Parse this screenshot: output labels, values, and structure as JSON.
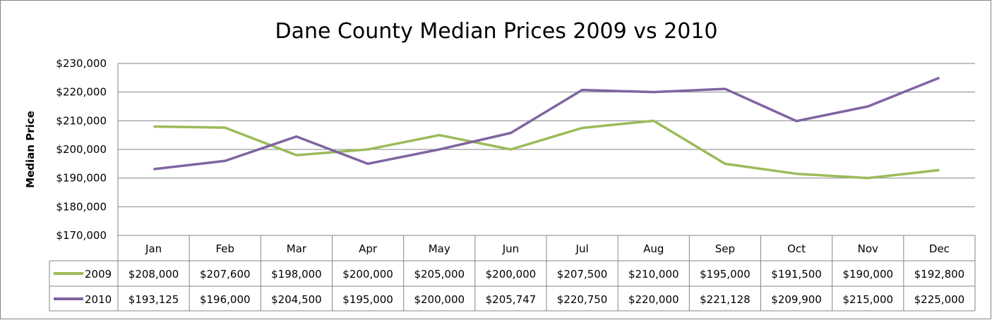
{
  "chart_data": {
    "type": "line",
    "title": "Dane County Median Prices 2009 vs 2010",
    "xlabel": "",
    "ylabel": "Median Price",
    "ylim": [
      170000,
      230000
    ],
    "yticks": [
      "$170,000",
      "$180,000",
      "$190,000",
      "$200,000",
      "$210,000",
      "$220,000",
      "$230,000"
    ],
    "grid": true,
    "legend": "data-table",
    "categories": [
      "Jan",
      "Feb",
      "Mar",
      "Apr",
      "May",
      "Jun",
      "Jul",
      "Aug",
      "Sep",
      "Oct",
      "Nov",
      "Dec"
    ],
    "series": [
      {
        "name": "2009",
        "color": "#9BBB59",
        "values": [
          208000,
          207600,
          198000,
          200000,
          205000,
          200000,
          207500,
          210000,
          195000,
          191500,
          190000,
          192800
        ],
        "labels": [
          "$208,000",
          "$207,600",
          "$198,000",
          "$200,000",
          "$205,000",
          "$200,000",
          "$207,500",
          "$210,000",
          "$195,000",
          "$191,500",
          "$190,000",
          "$192,800"
        ]
      },
      {
        "name": "2010",
        "color": "#8064A2",
        "values": [
          193125,
          196000,
          204500,
          195000,
          200000,
          205747,
          220750,
          220000,
          221128,
          209900,
          215000,
          225000
        ],
        "labels": [
          "$193,125",
          "$196,000",
          "$204,500",
          "$195,000",
          "$200,000",
          "$205,747",
          "$220,750",
          "$220,000",
          "$221,128",
          "$209,900",
          "$215,000",
          "$225,000"
        ]
      }
    ]
  }
}
